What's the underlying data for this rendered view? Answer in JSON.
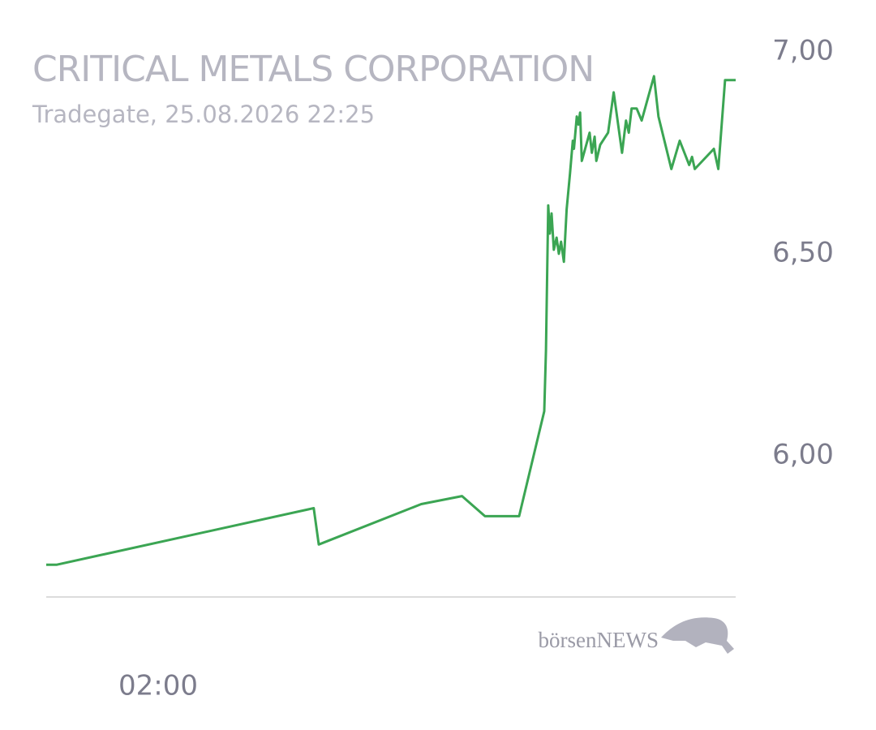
{
  "chart_data": {
    "type": "line",
    "title": "CRITICAL METALS CORPORATION",
    "subtitle": "Tradegate, 25.08.2026 22:25",
    "watermark": "börsenNEWS",
    "color": "#3ba553",
    "x": [
      0,
      0.19,
      4.78,
      4.87,
      6.7,
      7.43,
      7.84,
      8.45,
      8.9,
      8.93,
      8.97,
      9.0,
      9.03,
      9.07,
      9.12,
      9.16,
      9.2,
      9.25,
      9.28,
      9.3,
      9.36,
      9.41,
      9.43,
      9.48,
      9.51,
      9.54,
      9.57,
      9.71,
      9.75,
      9.8,
      9.83,
      9.9,
      10.04,
      10.14,
      10.29,
      10.36,
      10.41,
      10.46,
      10.55,
      10.64,
      10.86,
      10.94,
      11.17,
      11.32,
      11.49,
      11.54,
      11.59,
      11.93,
      12.01,
      12.13,
      12.32
    ],
    "values": [
      5.73,
      5.73,
      5.87,
      5.78,
      5.88,
      5.9,
      5.85,
      5.85,
      6.11,
      6.26,
      6.62,
      6.55,
      6.6,
      6.51,
      6.54,
      6.5,
      6.53,
      6.48,
      6.56,
      6.61,
      6.7,
      6.78,
      6.76,
      6.84,
      6.82,
      6.85,
      6.73,
      6.8,
      6.75,
      6.79,
      6.73,
      6.77,
      6.8,
      6.9,
      6.75,
      6.83,
      6.8,
      6.86,
      6.86,
      6.83,
      6.94,
      6.84,
      6.71,
      6.78,
      6.72,
      6.74,
      6.71,
      6.76,
      6.71,
      6.93,
      6.93
    ],
    "xlim": [
      0,
      12.32
    ],
    "xticks": [
      {
        "value": 2,
        "label": "02:00"
      }
    ],
    "ylim": [
      5.65,
      7.0
    ],
    "yticks": [
      {
        "value": 6,
        "label": "6,00"
      },
      {
        "value": 6.5,
        "label": "6,50"
      },
      {
        "value": 7,
        "label": "7,00"
      }
    ]
  }
}
